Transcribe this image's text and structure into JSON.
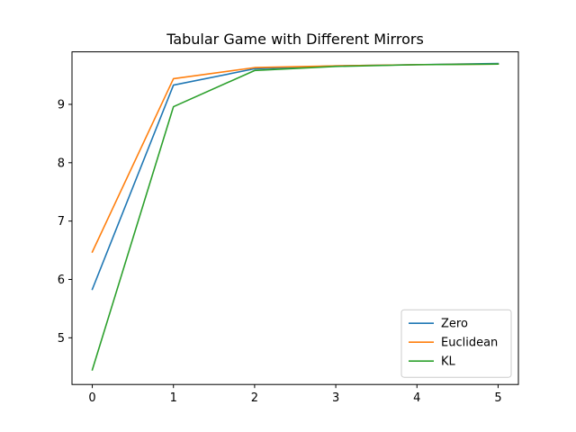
{
  "chart_data": {
    "type": "line",
    "title": "Tabular Game with Different Mirrors",
    "xlabel": "",
    "ylabel": "",
    "x": [
      0,
      1,
      2,
      3,
      4,
      5
    ],
    "xlim": [
      -0.25,
      5.25
    ],
    "ylim": [
      4.2,
      9.9
    ],
    "xticks": [
      0,
      1,
      2,
      3,
      4,
      5
    ],
    "yticks": [
      5,
      6,
      7,
      8,
      9
    ],
    "grid": false,
    "legend_position": "lower-right",
    "series": [
      {
        "name": "Zero",
        "color": "#1f77b4",
        "values": [
          5.83,
          9.33,
          9.61,
          9.66,
          9.68,
          9.7
        ]
      },
      {
        "name": "Euclidean",
        "color": "#ff7f0e",
        "values": [
          6.47,
          9.44,
          9.63,
          9.66,
          9.68,
          9.69
        ]
      },
      {
        "name": "KL",
        "color": "#2ca02c",
        "values": [
          4.45,
          8.96,
          9.58,
          9.65,
          9.68,
          9.69
        ]
      }
    ]
  }
}
